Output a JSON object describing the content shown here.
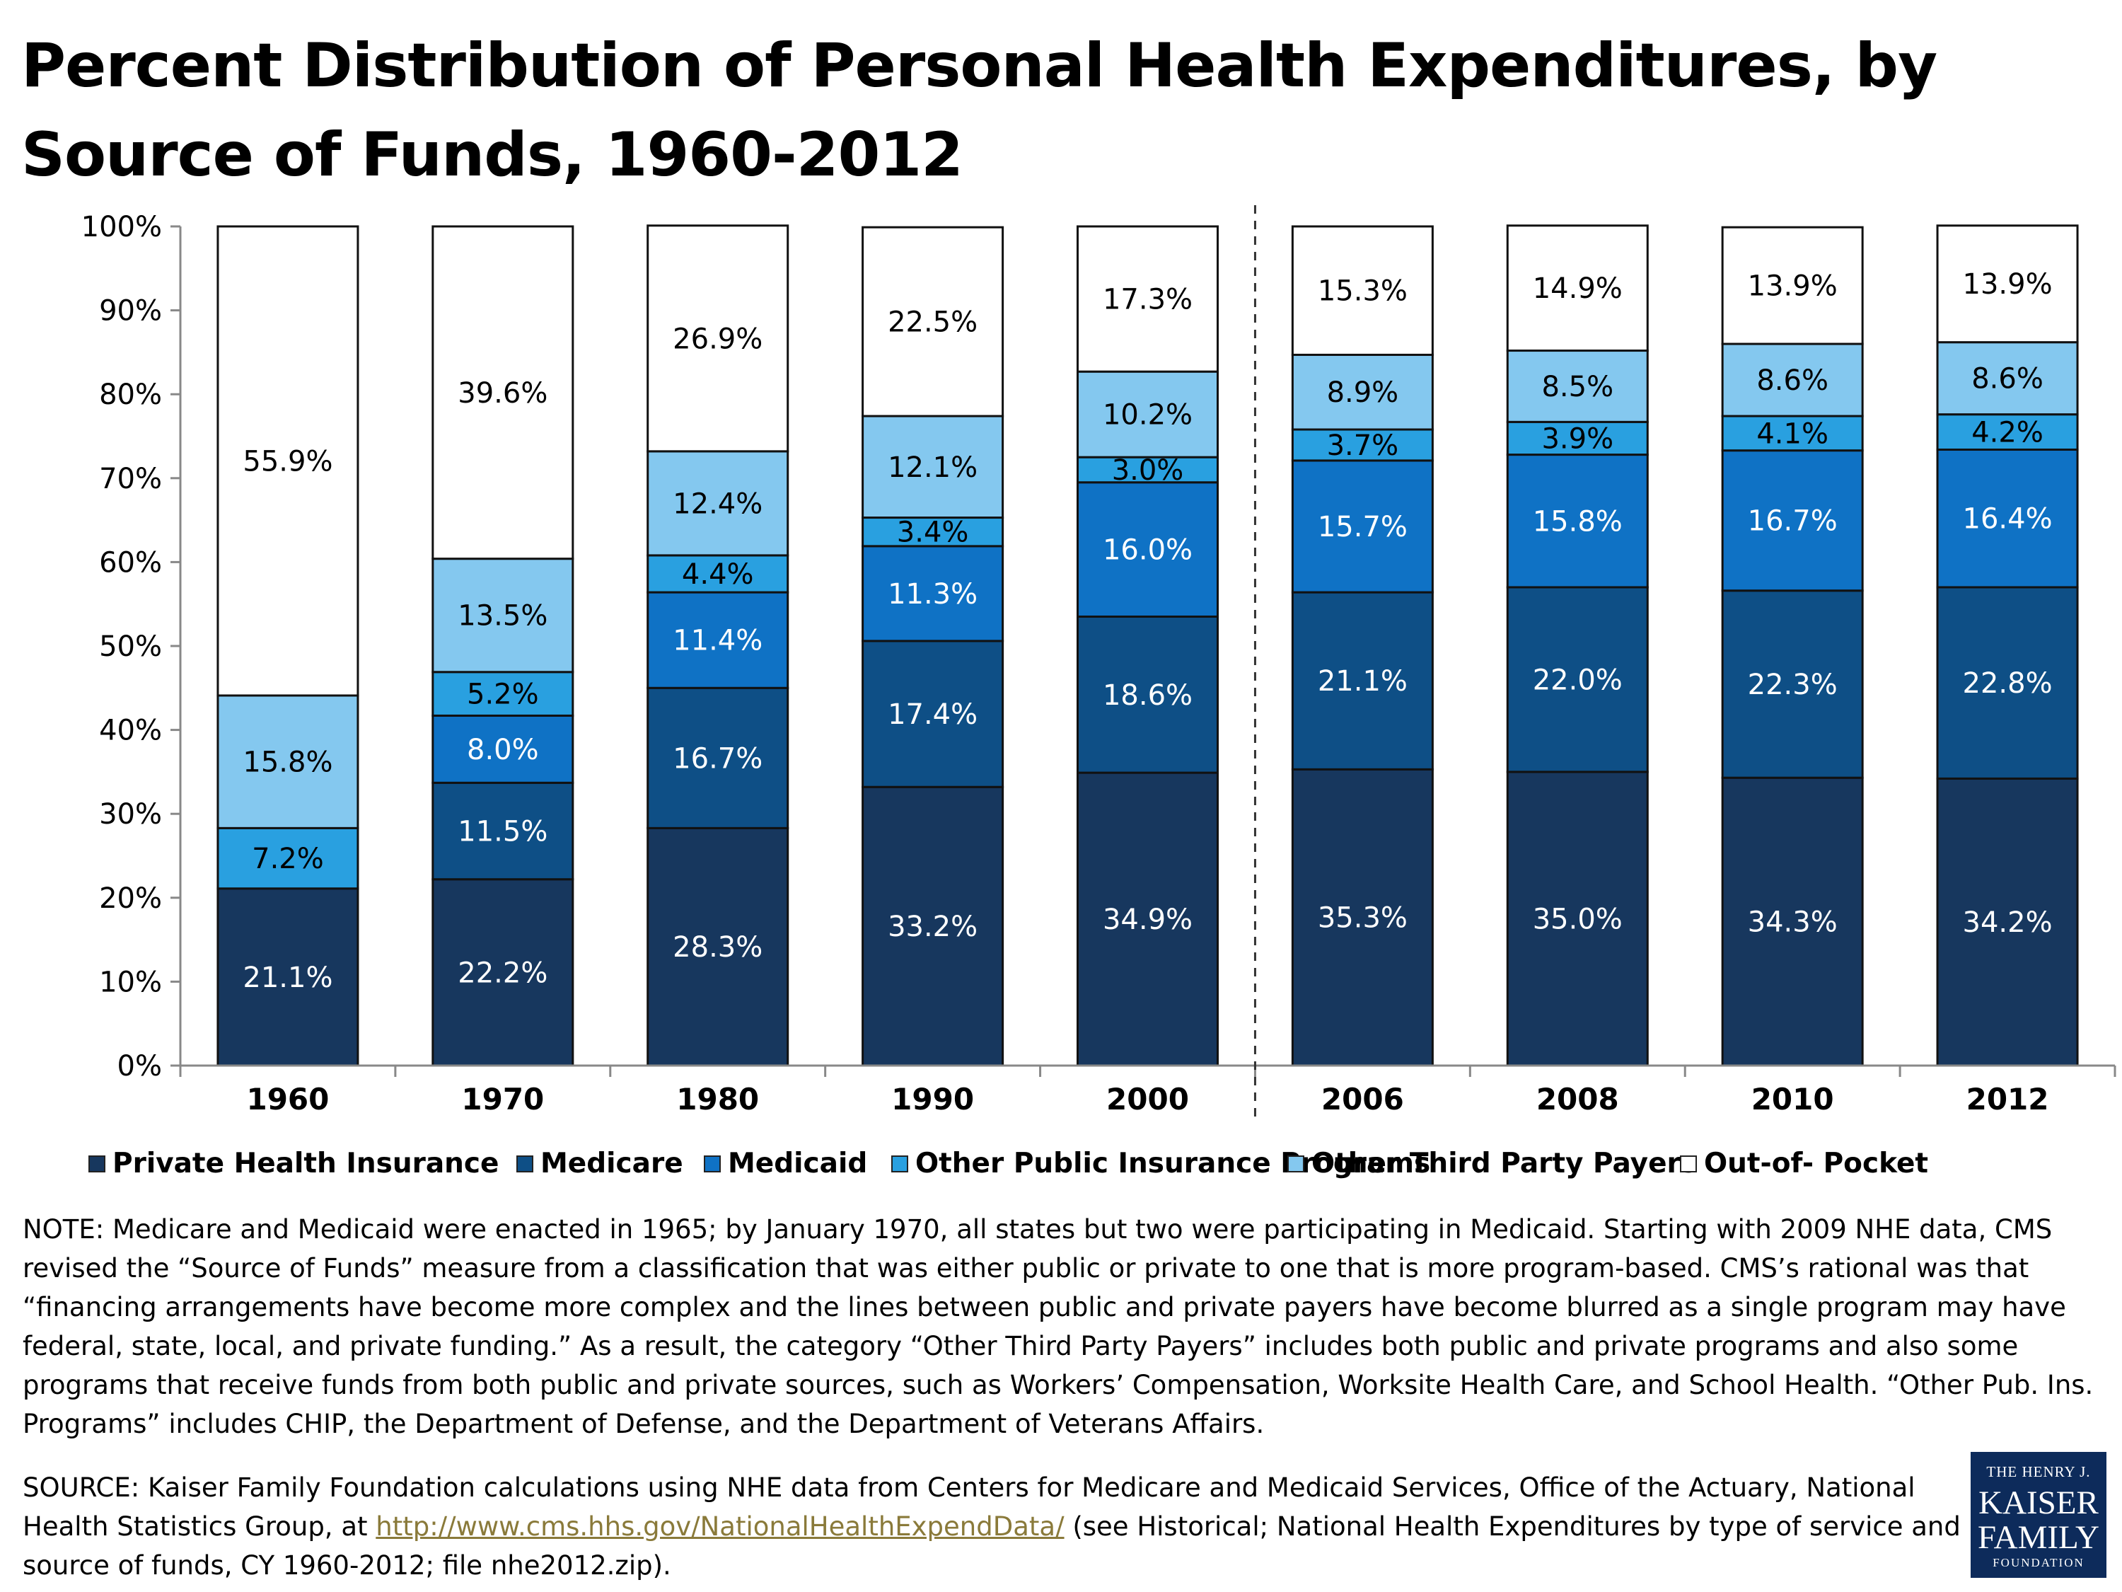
{
  "title": "Percent Distribution of Personal Health Expenditures, by Source of Funds, 1960-2012",
  "chart_data": {
    "type": "bar",
    "stacked": true,
    "categories": [
      "1960",
      "1970",
      "1980",
      "1990",
      "2000",
      "2006",
      "2008",
      "2010",
      "2012"
    ],
    "ylim": [
      0,
      100
    ],
    "yticks": [
      "0%",
      "10%",
      "20%",
      "30%",
      "40%",
      "50%",
      "60%",
      "70%",
      "80%",
      "90%",
      "100%"
    ],
    "grid": false,
    "legend_position": "bottom",
    "series": [
      {
        "name": "Private Health Insurance",
        "color": "#17375e",
        "label_color": "#ffffff",
        "values": [
          21.1,
          22.2,
          28.3,
          33.2,
          34.9,
          35.3,
          35.0,
          34.3,
          34.2
        ],
        "labels": [
          "21.1%",
          "22.2%",
          "28.3%",
          "33.2%",
          "34.9%",
          "35.3%",
          "35.0%",
          "34.3%",
          "34.2%"
        ]
      },
      {
        "name": "Medicare",
        "color": "#0e4f86",
        "label_color": "#ffffff",
        "values": [
          0,
          11.5,
          16.7,
          17.4,
          18.6,
          21.1,
          22.0,
          22.3,
          22.8
        ],
        "labels": [
          "",
          "11.5%",
          "16.7%",
          "17.4%",
          "18.6%",
          "21.1%",
          "22.0%",
          "22.3%",
          "22.8%"
        ]
      },
      {
        "name": "Medicaid",
        "color": "#0f72c5",
        "label_color": "#ffffff",
        "values": [
          0,
          8.0,
          11.4,
          11.3,
          16.0,
          15.7,
          15.8,
          16.7,
          16.4
        ],
        "labels": [
          "",
          "8.0%",
          "11.4%",
          "11.3%",
          "16.0%",
          "15.7%",
          "15.8%",
          "16.7%",
          "16.4%"
        ]
      },
      {
        "name": "Other Public Insurance Programs",
        "color": "#29a0e0",
        "label_color": "#000000",
        "values": [
          7.2,
          5.2,
          4.4,
          3.4,
          3.0,
          3.7,
          3.9,
          4.1,
          4.2
        ],
        "labels": [
          "7.2%",
          "5.2%",
          "4.4%",
          "3.4%",
          "3.0%",
          "3.7%",
          "3.9%",
          "4.1%",
          "4.2%"
        ]
      },
      {
        "name": "Other Third Party Payers",
        "color": "#84c8ef",
        "label_color": "#000000",
        "values": [
          15.8,
          13.5,
          12.4,
          12.1,
          10.2,
          8.9,
          8.5,
          8.6,
          8.6
        ],
        "labels": [
          "15.8%",
          "13.5%",
          "12.4%",
          "12.1%",
          "10.2%",
          "8.9%",
          "8.5%",
          "8.6%",
          "8.6%"
        ]
      },
      {
        "name": "Out-of- Pocket",
        "color": "#ffffff",
        "label_color": "#000000",
        "values": [
          55.9,
          39.6,
          26.9,
          22.5,
          17.3,
          15.3,
          14.9,
          13.9,
          13.9
        ],
        "labels": [
          "55.9%",
          "39.6%",
          "26.9%",
          "22.5%",
          "17.3%",
          "15.3%",
          "14.9%",
          "13.9%",
          "13.9%"
        ]
      }
    ]
  },
  "note": "NOTE: Medicare and Medicaid were enacted in 1965; by January 1970, all states but two were participating in Medicaid. Starting with 2009 NHE data, CMS revised the “Source of Funds” measure from a classification that was either public or private to one that is more program-based. CMS’s rational was that “financing arrangements have become more complex and the lines between public and private payers have become blurred as a single program may have federal, state, local, and private funding.”  As a result, the category “Other Third Party Payers” includes both public and private programs and also some programs that receive funds from both public and private sources, such as Workers’ Compensation, Worksite Health Care, and School Health.  “Other Pub. Ins. Programs” includes CHIP, the Department of Defense, and the Department of Veterans Affairs.",
  "source": {
    "prefix": "SOURCE: Kaiser Family Foundation calculations using NHE data from Centers for Medicare and Medicaid Services, Office of the Actuary, National Health Statistics Group, at ",
    "link": "http://www.cms.hhs.gov/NationalHealthExpendData/",
    "suffix": " (see Historical; National Health Expenditures by type of service and source of funds, CY 1960-2012; file nhe2012.zip)."
  },
  "logo": {
    "line1": "THE HENRY J.",
    "line2": "KAISER",
    "line3": "FAMILY",
    "line4": "FOUNDATION"
  }
}
